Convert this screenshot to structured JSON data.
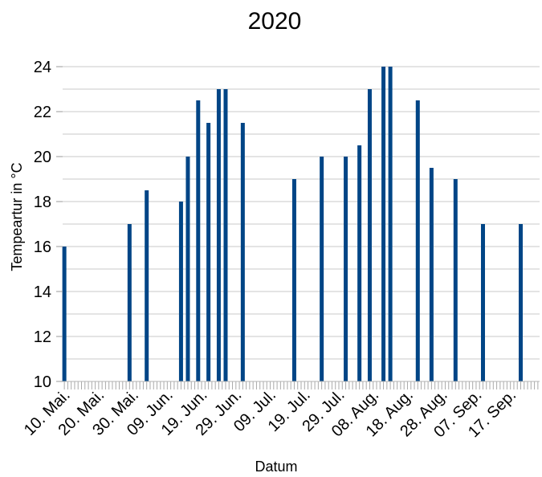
{
  "chart_data": {
    "type": "bar",
    "title": "2020",
    "xlabel": "Datum",
    "ylabel": "Tempeartur in °C",
    "ylim": [
      10,
      25
    ],
    "yticks": [
      10,
      12,
      14,
      16,
      18,
      20,
      22,
      24
    ],
    "grid": true,
    "legend": "none",
    "bar_color": "#004586",
    "x_start": "10. Mai.",
    "x_end": "25. Sep.",
    "xtick_labels": [
      "10. Mai.",
      "20. Mai.",
      "30. Mai.",
      "09. Jun.",
      "19. Jun.",
      "29. Jun.",
      "09. Jul.",
      "19. Jul.",
      "29. Jul.",
      "08. Aug.",
      "18. Aug.",
      "28. Aug.",
      "07. Sep.",
      "17. Sep."
    ],
    "points": [
      {
        "date": "10. Mai.",
        "value": 16
      },
      {
        "date": "29. Mai.",
        "value": 17
      },
      {
        "date": "03. Jun.",
        "value": 18.5
      },
      {
        "date": "13. Jun.",
        "value": 18
      },
      {
        "date": "15. Jun.",
        "value": 20
      },
      {
        "date": "18. Jun.",
        "value": 22.5
      },
      {
        "date": "21. Jun.",
        "value": 21.5
      },
      {
        "date": "24. Jun.",
        "value": 23
      },
      {
        "date": "26. Jun.",
        "value": 23
      },
      {
        "date": "01. Jul.",
        "value": 21.5
      },
      {
        "date": "16. Jul.",
        "value": 19
      },
      {
        "date": "24. Jul.",
        "value": 20
      },
      {
        "date": "31. Jul.",
        "value": 20
      },
      {
        "date": "04. Aug.",
        "value": 20.5
      },
      {
        "date": "07. Aug.",
        "value": 23
      },
      {
        "date": "11. Aug.",
        "value": 24
      },
      {
        "date": "13. Aug.",
        "value": 24
      },
      {
        "date": "21. Aug.",
        "value": 22.5
      },
      {
        "date": "25. Aug.",
        "value": 19.5
      },
      {
        "date": "01. Sep.",
        "value": 19
      },
      {
        "date": "09. Sep.",
        "value": 17
      },
      {
        "date": "20. Sep.",
        "value": 17
      }
    ]
  }
}
